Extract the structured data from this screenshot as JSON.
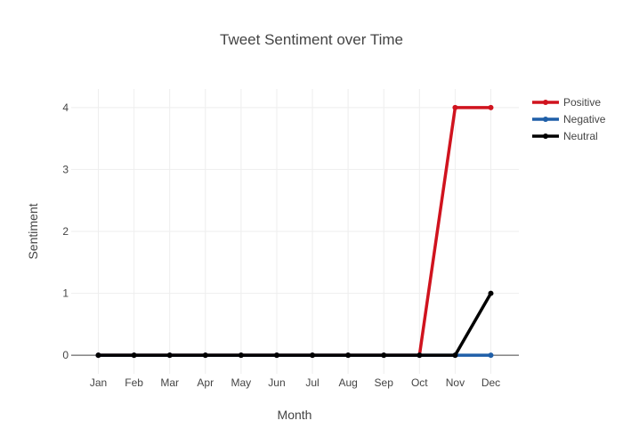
{
  "chart_data": {
    "type": "line",
    "title": "Tweet Sentiment over Time",
    "xlabel": "Month",
    "ylabel": "Sentiment",
    "categories": [
      "Jan",
      "Feb",
      "Mar",
      "Apr",
      "May",
      "Jun",
      "Jul",
      "Aug",
      "Sep",
      "Oct",
      "Nov",
      "Dec"
    ],
    "ylim": [
      -0.3,
      4.3
    ],
    "yticks": [
      0,
      1,
      2,
      3,
      4
    ],
    "grid": true,
    "legend_position": "top-right",
    "series": [
      {
        "name": "Positive",
        "color": "#d0131e",
        "values": [
          0,
          0,
          0,
          0,
          0,
          0,
          0,
          0,
          0,
          0,
          4,
          4
        ]
      },
      {
        "name": "Negative",
        "color": "#1f5fa8",
        "values": [
          0,
          0,
          0,
          0,
          0,
          0,
          0,
          0,
          0,
          0,
          0,
          0
        ]
      },
      {
        "name": "Neutral",
        "color": "#000000",
        "values": [
          0,
          0,
          0,
          0,
          0,
          0,
          0,
          0,
          0,
          0,
          0,
          1
        ]
      }
    ]
  }
}
